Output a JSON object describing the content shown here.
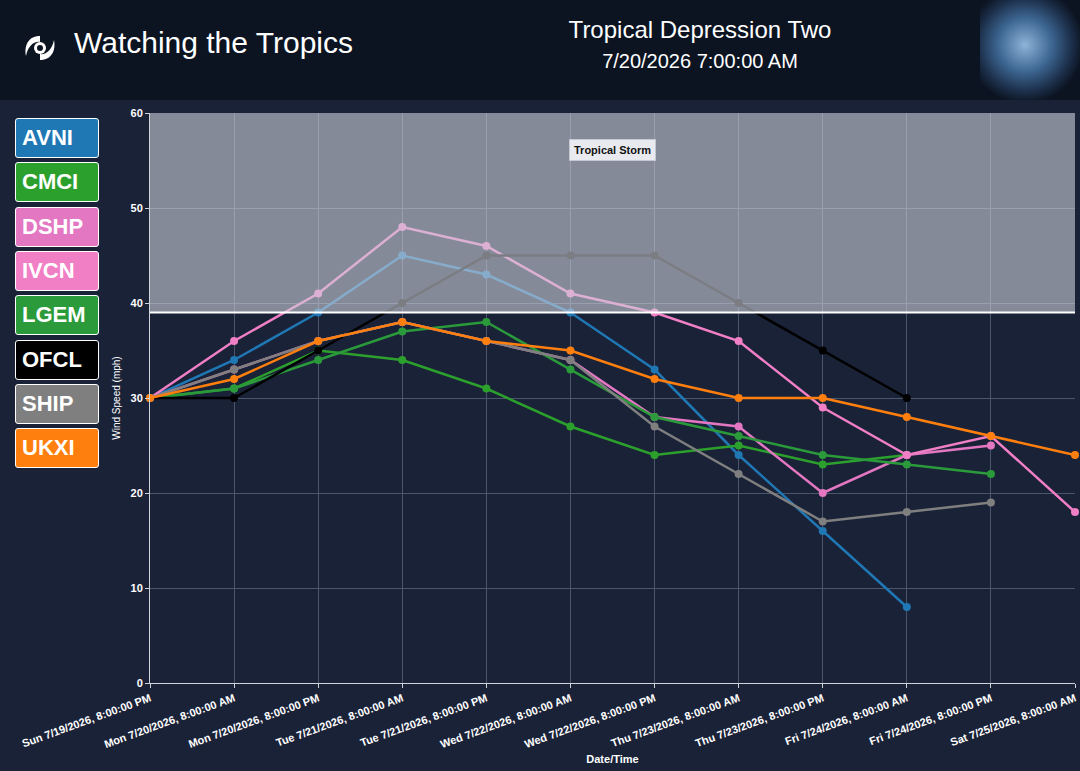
{
  "header": {
    "brand": "Watching the Tropics"
  },
  "chart_data": {
    "type": "line",
    "title": "Tropical Depression Two",
    "subtitle": "7/20/2026 7:00:00 AM",
    "x_label": "Date/Time",
    "y_label": "Wind Speed (mph)",
    "categories": [
      "Sun 7/19/2026, 8:00:00 PM",
      "Mon 7/20/2026, 8:00:00 AM",
      "Mon 7/20/2026, 8:00:00 PM",
      "Tue 7/21/2026, 8:00:00 AM",
      "Tue 7/21/2026, 8:00:00 PM",
      "Wed 7/22/2026, 8:00:00 AM",
      "Wed 7/22/2026, 8:00:00 PM",
      "Thu 7/23/2026, 8:00:00 AM",
      "Thu 7/23/2026, 8:00:00 PM",
      "Fri 7/24/2026, 8:00:00 AM",
      "Fri 7/24/2026, 8:00:00 PM",
      "Sat 7/25/2026, 8:00:00 AM"
    ],
    "series": [
      {
        "name": "AVNI",
        "color": "#1f77b4",
        "values": [
          30,
          34,
          39,
          45,
          43,
          39,
          33,
          24,
          16,
          8,
          null,
          null
        ]
      },
      {
        "name": "CMCI",
        "color": "#2ca02c",
        "values": [
          30,
          31,
          35,
          34,
          31,
          27,
          24,
          25,
          23,
          24,
          null,
          null
        ]
      },
      {
        "name": "DSHP",
        "color": "#e377c2",
        "values": [
          30,
          33,
          36,
          38,
          36,
          34,
          28,
          27,
          20,
          24,
          25,
          null
        ]
      },
      {
        "name": "IVCN",
        "color": "#f17fc6",
        "values": [
          30,
          36,
          41,
          48,
          46,
          41,
          39,
          36,
          29,
          24,
          26,
          18
        ]
      },
      {
        "name": "LGEM",
        "color": "#2a9a3a",
        "values": [
          30,
          31,
          34,
          37,
          38,
          33,
          28,
          26,
          24,
          23,
          22,
          null
        ]
      },
      {
        "name": "OFCL",
        "color": "#000000",
        "values": [
          30,
          30,
          35,
          40,
          45,
          45,
          45,
          40,
          35,
          30,
          null,
          null
        ]
      },
      {
        "name": "SHIP",
        "color": "#7f7f7f",
        "values": [
          30,
          33,
          36,
          38,
          36,
          34,
          27,
          22,
          17,
          18,
          19,
          null
        ]
      },
      {
        "name": "UKXI",
        "color": "#ff7f0e",
        "values": [
          30,
          32,
          36,
          38,
          36,
          35,
          32,
          30,
          30,
          28,
          26,
          24
        ]
      }
    ],
    "ylim": [
      0,
      60
    ],
    "yticks": [
      0,
      10,
      20,
      30,
      40,
      50,
      60
    ],
    "grid": true,
    "legend": "left",
    "marker": "circle",
    "band": {
      "label": "Tropical Storm",
      "from": 39,
      "to": 60
    }
  }
}
